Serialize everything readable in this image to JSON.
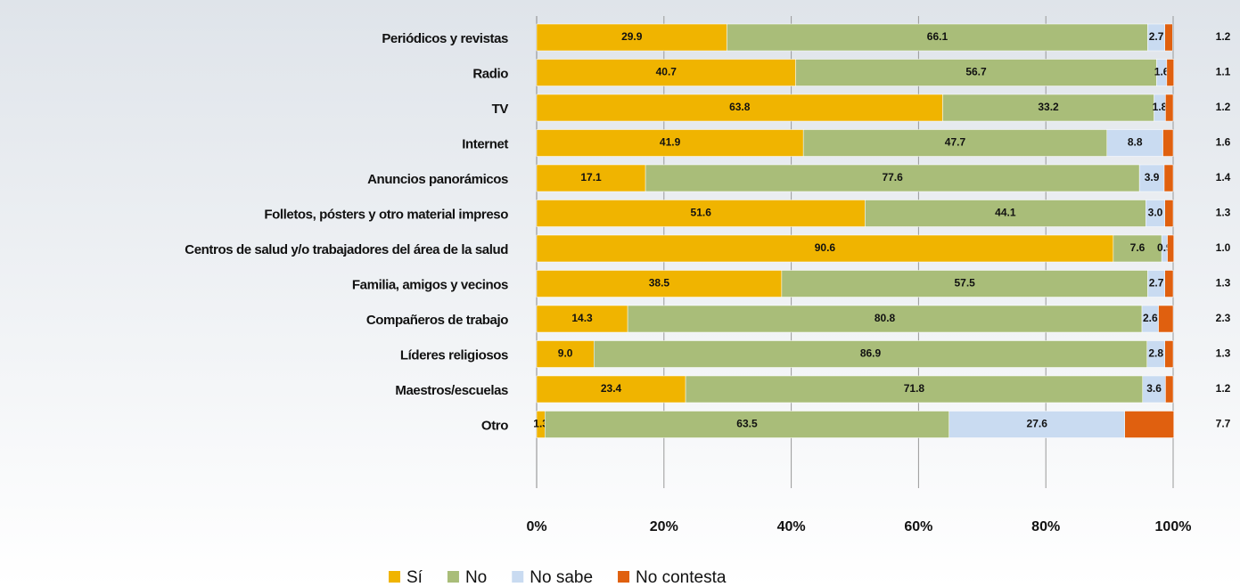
{
  "chart_data": {
    "type": "stacked-bar-horizontal",
    "categories": [
      "Periódicos y revistas",
      "Radio",
      "TV",
      "Internet",
      "Anuncios panorámicos",
      "Folletos, pósters y otro material impreso",
      "Centros de salud y/o trabajadores del área de la salud",
      "Familia, amigos y vecinos",
      "Compañeros de trabajo",
      "Líderes religiosos",
      "Maestros/escuelas",
      "Otro"
    ],
    "series": [
      {
        "name": "Sí",
        "color": "#f0b400",
        "values": [
          29.9,
          40.7,
          63.8,
          41.9,
          17.1,
          51.6,
          90.6,
          38.5,
          14.3,
          9.0,
          23.4,
          1.3
        ],
        "value_labels": [
          "29.9",
          "40.7",
          "63.8",
          "41.9",
          "17.1",
          "51.6",
          "90.6",
          "38.5",
          "14.3",
          "9.0",
          "23.4",
          "1.3"
        ]
      },
      {
        "name": "No",
        "color": "#a9bd79",
        "values": [
          66.1,
          56.7,
          33.2,
          47.7,
          77.6,
          44.1,
          7.6,
          57.5,
          80.8,
          86.9,
          71.8,
          63.5
        ],
        "value_labels": [
          "66.1",
          "56.7",
          "33.2",
          "47.7",
          "77.6",
          "44.1",
          "7.6",
          "57.5",
          "80.8",
          "86.9",
          "71.8",
          "63.5"
        ]
      },
      {
        "name": "No sabe",
        "color": "#c9dbf1",
        "values": [
          2.7,
          1.6,
          1.8,
          8.8,
          3.9,
          3.0,
          0.9,
          2.7,
          2.6,
          2.8,
          3.6,
          27.6
        ],
        "value_labels": [
          "2.7",
          "1.6",
          "1.8",
          "8.8",
          "3.9",
          "3.0",
          "0.9",
          "2.7",
          "2.6",
          "2.8",
          "3.6",
          "27.6"
        ]
      },
      {
        "name": "No contesta",
        "color": "#e0600f",
        "values": [
          1.2,
          1.1,
          1.2,
          1.6,
          1.4,
          1.3,
          1.0,
          1.3,
          2.3,
          1.3,
          1.2,
          7.7
        ],
        "value_labels": [
          "1.2",
          "1.1",
          "1.2",
          "1.6",
          "1.4",
          "1.3",
          "1.0",
          "1.3",
          "2.3",
          "1.3",
          "1.2",
          "7.7"
        ]
      }
    ],
    "xlim": [
      0,
      100
    ],
    "xticks": [
      {
        "value": 0,
        "label": "0%"
      },
      {
        "value": 20,
        "label": "20%"
      },
      {
        "value": 40,
        "label": "40%"
      },
      {
        "value": 60,
        "label": "60%"
      },
      {
        "value": 80,
        "label": "80%"
      },
      {
        "value": 100,
        "label": "100%"
      }
    ],
    "grid": true,
    "legend": "bottom"
  }
}
